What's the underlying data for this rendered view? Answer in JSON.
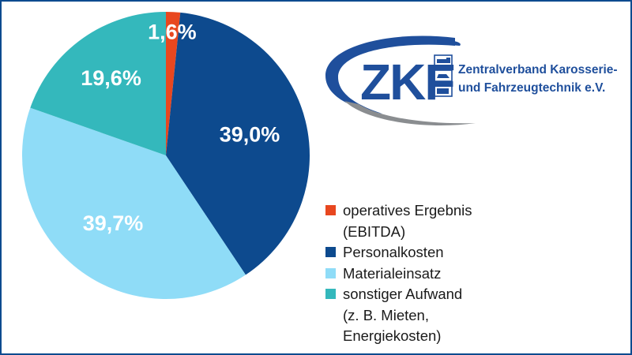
{
  "chart_data": {
    "type": "pie",
    "title": "",
    "slices": [
      {
        "label": "operatives Ergebnis\n(EBITDA)",
        "value": 1.6,
        "display": "1,6%",
        "color": "#e8471f"
      },
      {
        "label": "Personalkosten",
        "value": 39.0,
        "display": "39,0%",
        "color": "#0d4a8e"
      },
      {
        "label": "Materialeinsatz",
        "value": 39.7,
        "display": "39,7%",
        "color": "#8fdcf7"
      },
      {
        "label": "sonstiger Aufwand\n(z. B. Mieten,\nEnergiekosten)",
        "value": 19.6,
        "display": "19,6%",
        "color": "#34b8bc"
      }
    ],
    "start_angle_deg": 0,
    "direction": "clockwise",
    "legend_position": "right"
  },
  "logo": {
    "mark": "ZKF",
    "line1": "Zentralverband Karosserie-",
    "line2": "und Fahrzeugtechnik e.V.",
    "colors": {
      "blue": "#1f4f9c",
      "gray": "#8a8d90"
    }
  },
  "colors": {
    "frame": "#0d4b8f"
  }
}
